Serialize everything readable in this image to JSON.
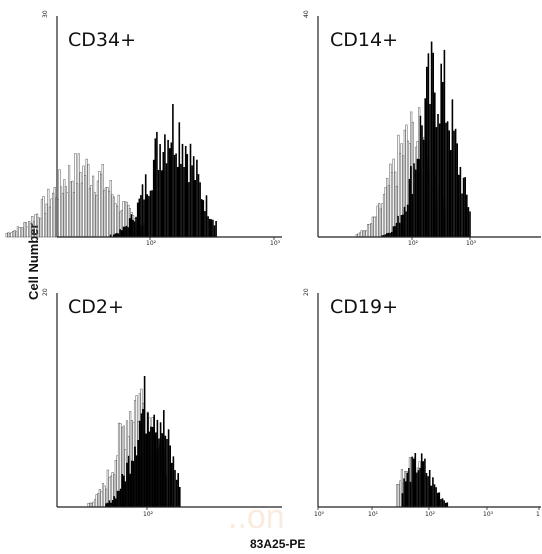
{
  "figure": {
    "y_axis_label": "Cell Number",
    "x_axis_label": "83A25-PE",
    "watermark": "..on",
    "colors": {
      "filled": "#000000",
      "outline": "#555555",
      "axis": "#222222"
    }
  },
  "chart_data": [
    {
      "type": "histogram",
      "title": "CD34+",
      "x_ticks": [
        "10²",
        "10³"
      ],
      "y_top_tick": "30",
      "log_scale_x": true,
      "xlim": [
        1,
        10000
      ],
      "ylim": [
        0,
        30
      ],
      "series": [
        {
          "style": "outline",
          "log_start": 0.9,
          "log_end": 2.0,
          "peak_log": 1.5,
          "peak": 9,
          "spread": 0.25
        },
        {
          "style": "filled",
          "log_start": 1.7,
          "log_end": 2.55,
          "peak_log": 2.2,
          "peak": 15,
          "spread": 0.17
        }
      ]
    },
    {
      "type": "histogram",
      "title": "CD14+",
      "x_ticks": [
        "10²",
        "10³"
      ],
      "y_top_tick": "40",
      "log_scale_x": true,
      "xlim": [
        1,
        10000
      ],
      "ylim": [
        0,
        40
      ],
      "series": [
        {
          "style": "outline",
          "log_start": 1.5,
          "log_end": 2.7,
          "peak_log": 2.25,
          "peak": 18,
          "spread": 0.28
        },
        {
          "style": "filled",
          "log_start": 1.6,
          "log_end": 3.0,
          "peak_log": 2.55,
          "peak": 28,
          "spread": 0.24
        }
      ]
    },
    {
      "type": "histogram",
      "title": "CD2+",
      "x_ticks": [
        "10²"
      ],
      "y_top_tick": "20",
      "log_scale_x": true,
      "xlim": [
        1,
        10000
      ],
      "ylim": [
        0,
        20
      ],
      "series": [
        {
          "style": "outline",
          "log_start": 0.8,
          "log_end": 2.3,
          "peak_log": 1.85,
          "peak": 10,
          "spread": 0.32
        },
        {
          "style": "filled",
          "log_start": 1.2,
          "log_end": 2.55,
          "peak_log": 2.05,
          "peak": 10,
          "spread": 0.28
        }
      ]
    },
    {
      "type": "histogram",
      "title": "CD19+",
      "x_ticks": [
        "10⁰",
        "10¹",
        "10²",
        "10³",
        "1"
      ],
      "y_top_tick": "20",
      "log_scale_x": true,
      "xlim": [
        1,
        10000
      ],
      "ylim": [
        0,
        20
      ],
      "series": [
        {
          "style": "outline",
          "log_start": 1.45,
          "log_end": 2.2,
          "peak_log": 1.75,
          "peak": 4,
          "spread": 0.25
        },
        {
          "style": "filled",
          "log_start": 1.55,
          "log_end": 2.5,
          "peak_log": 1.85,
          "peak": 4,
          "spread": 0.25
        }
      ]
    }
  ]
}
